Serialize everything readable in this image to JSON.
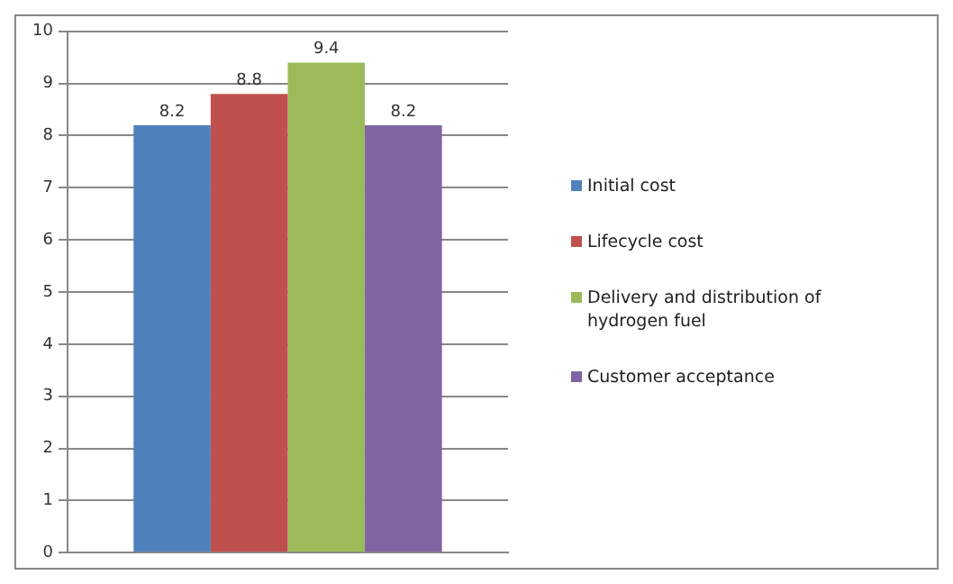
{
  "chart_data": {
    "type": "bar",
    "categories": [
      null
    ],
    "series": [
      {
        "name": "Initial cost",
        "color": "#4f81bd",
        "values": [
          8.2
        ]
      },
      {
        "name": "Lifecycle cost",
        "color": "#c0504d",
        "values": [
          8.8
        ]
      },
      {
        "name": "Delivery and distribution of hydrogen fuel",
        "color": "#9bbb59",
        "values": [
          9.4
        ]
      },
      {
        "name": "Customer acceptance",
        "color": "#8064a2",
        "values": [
          8.2
        ]
      }
    ],
    "ylim": [
      0,
      10
    ],
    "yticks": [
      0,
      1,
      2,
      3,
      4,
      5,
      6,
      7,
      8,
      9,
      10
    ],
    "grid": "y",
    "legend": "right",
    "data_labels": true
  }
}
